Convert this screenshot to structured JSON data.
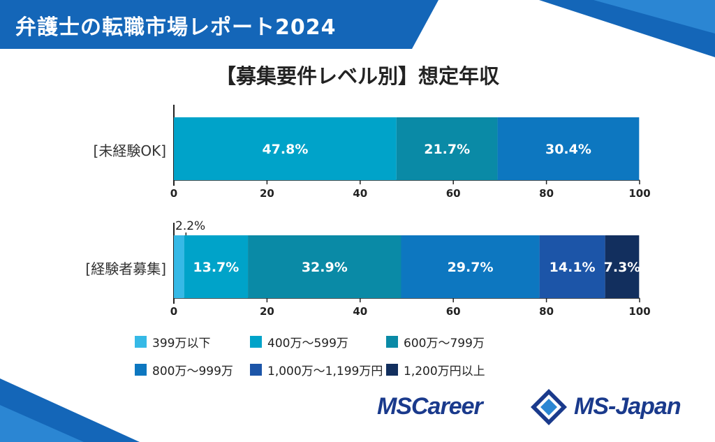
{
  "banner": {
    "title": "弁護士の転職市場レポート2024"
  },
  "colors": {
    "banner_blue": "#1466b8",
    "s1": "#36b9e6",
    "s2": "#00a3c9",
    "s3": "#0a8aa6",
    "s4": "#0d77c0",
    "s5": "#1c55a8",
    "s6": "#122f5e"
  },
  "chart_data": {
    "type": "bar",
    "orientation": "horizontal-stacked",
    "title": "【募集要件レベル別】想定年収",
    "xlim": [
      0,
      100
    ],
    "xticks": [
      "0",
      "20",
      "40",
      "60",
      "80",
      "100"
    ],
    "categories": [
      "[未経験OK]",
      "[経験者募集]"
    ],
    "series": [
      {
        "name": "399万以下",
        "values": [
          0,
          2.2
        ]
      },
      {
        "name": "400万～599万",
        "values": [
          47.8,
          13.7
        ]
      },
      {
        "name": "600万～799万",
        "values": [
          21.7,
          32.9
        ]
      },
      {
        "name": "800万～999万",
        "values": [
          30.4,
          29.7
        ]
      },
      {
        "name": "1,000万～1,199万円",
        "values": [
          0,
          14.1
        ]
      },
      {
        "name": "1,200万円以上",
        "values": [
          0,
          7.3
        ]
      }
    ],
    "labels": [
      [
        "",
        "47.8%",
        "21.7%",
        "30.4%",
        "",
        ""
      ],
      [
        "2.2%",
        "13.7%",
        "32.9%",
        "29.7%",
        "14.1%",
        "7.3%"
      ]
    ],
    "legend_position": "bottom"
  },
  "logos": {
    "left": "MSCareer",
    "right": "MS-Japan"
  }
}
